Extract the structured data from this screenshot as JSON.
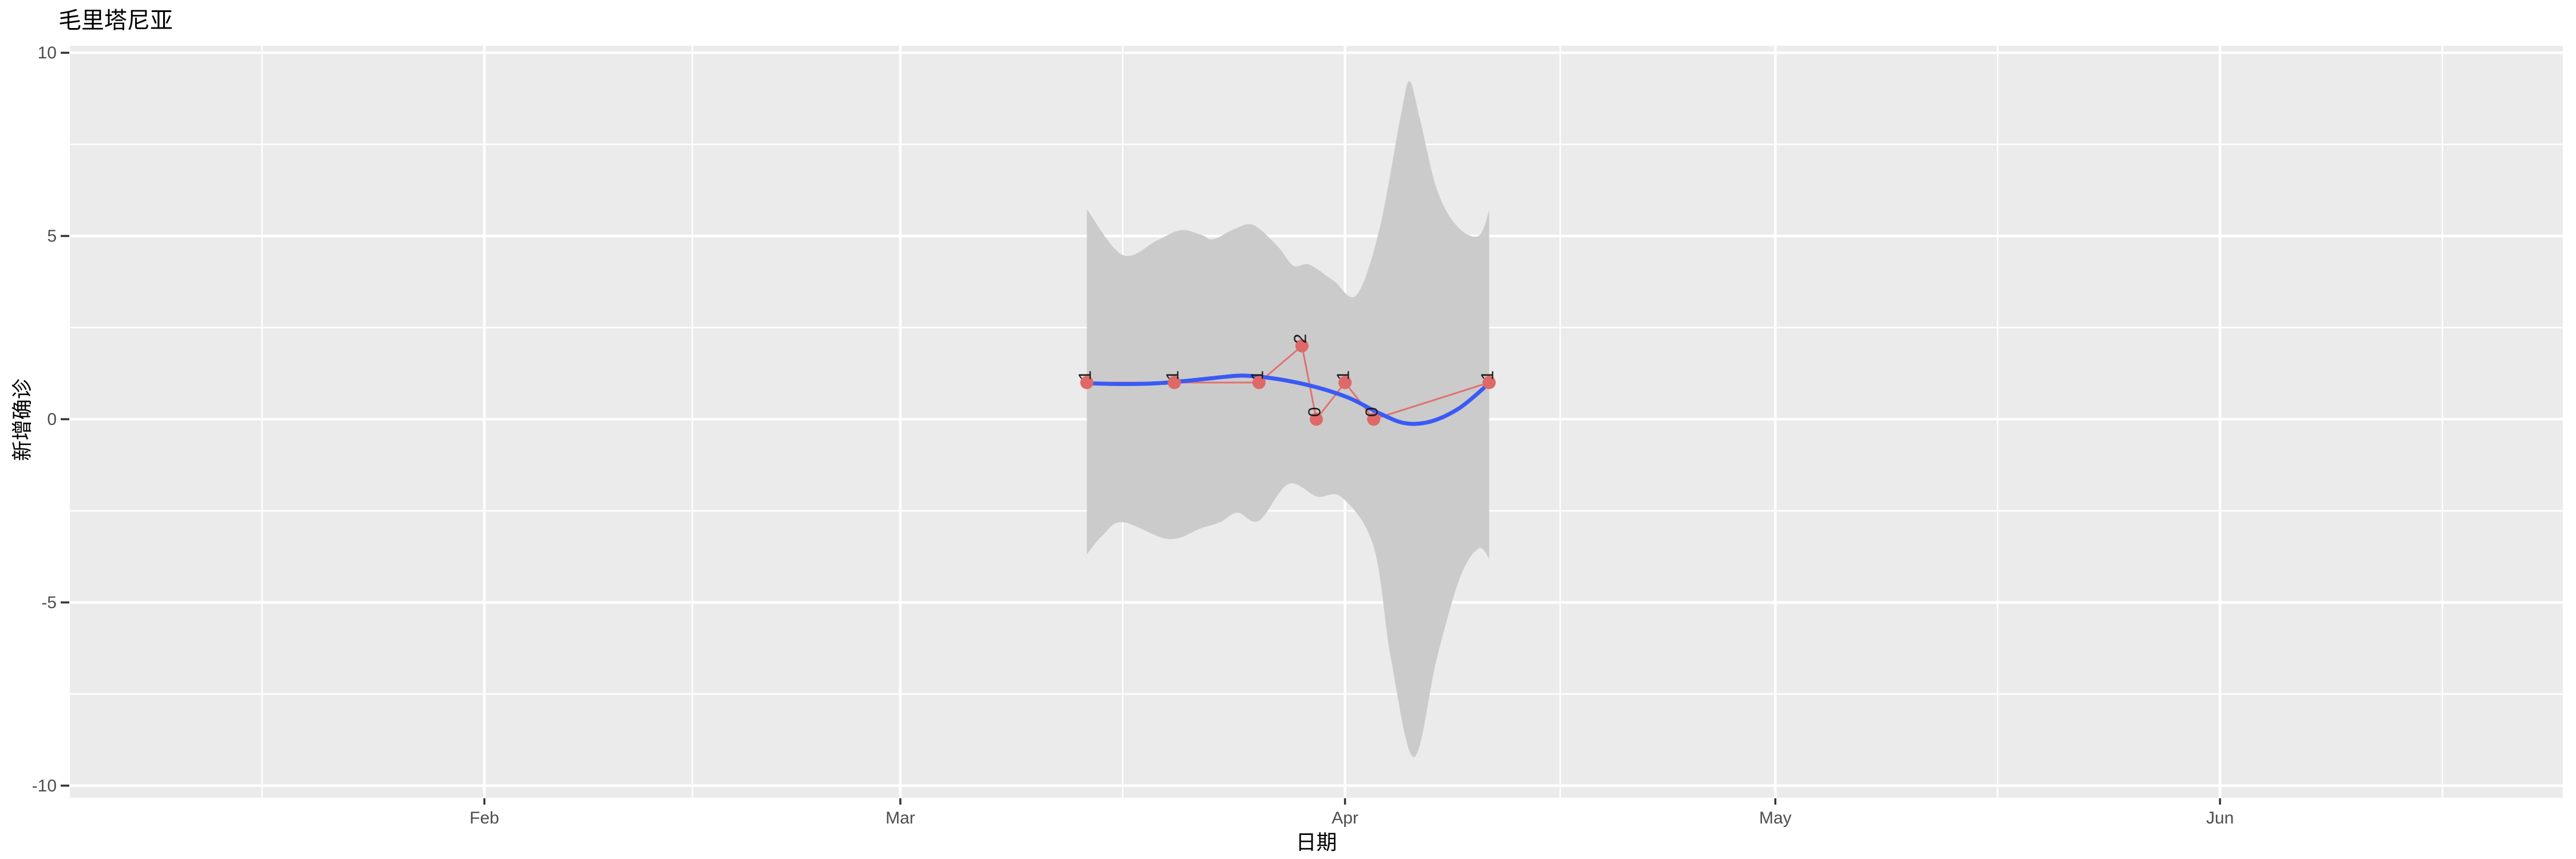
{
  "chart_data": {
    "type": "line",
    "title": "毛里塔尼亚",
    "xlabel": "日期",
    "ylabel": "新增确诊",
    "grid": true,
    "legend": "none",
    "x_axis": {
      "unit": "days_since_Mar1_2020",
      "tick_labels": [
        "Feb",
        "Mar",
        "Apr",
        "May",
        "Jun"
      ],
      "tick_days": [
        -29,
        0,
        31,
        61,
        92
      ],
      "minor_tick_days": [
        -44.5,
        -14.5,
        15.5,
        46,
        76.5,
        107.5
      ],
      "range_days": [
        -57.9,
        115.9
      ]
    },
    "y_axis": {
      "tick_labels": [
        "-10",
        "-5",
        "0",
        "5",
        "10"
      ],
      "tick_values": [
        -10,
        -5,
        0,
        5,
        10
      ],
      "minor_tick_values": [
        -7.5,
        -2.5,
        2.5,
        7.5
      ],
      "range": [
        -10.33,
        10.19
      ]
    },
    "points": [
      {
        "date": "Mar 14",
        "day": 13.0,
        "value": 1,
        "label": "1"
      },
      {
        "date": "Mar 20",
        "day": 19.1,
        "value": 1,
        "label": "1"
      },
      {
        "date": "Mar 26",
        "day": 25.0,
        "value": 1,
        "label": "1"
      },
      {
        "date": "Mar 29",
        "day": 28.0,
        "value": 2,
        "label": "2"
      },
      {
        "date": "Mar 30",
        "day": 29.0,
        "value": 0,
        "label": "0"
      },
      {
        "date": "Apr 1",
        "day": 31.0,
        "value": 1,
        "label": "1"
      },
      {
        "date": "Apr 3",
        "day": 33.0,
        "value": 0,
        "label": "0"
      },
      {
        "date": "Apr 11",
        "day": 41.05,
        "value": 1,
        "label": "1"
      }
    ],
    "smooth_line": {
      "name": "loess-fit",
      "points": [
        [
          13.0,
          0.98
        ],
        [
          15.5,
          0.96
        ],
        [
          17.9,
          0.98
        ],
        [
          20.3,
          1.06
        ],
        [
          22.7,
          1.16
        ],
        [
          23.9,
          1.19
        ],
        [
          25.5,
          1.14
        ],
        [
          27.4,
          1.02
        ],
        [
          29.4,
          0.83
        ],
        [
          31.4,
          0.56
        ],
        [
          33.4,
          0.16
        ],
        [
          35.2,
          -0.11
        ],
        [
          37.0,
          -0.06
        ],
        [
          39.0,
          0.31
        ],
        [
          41.05,
          0.98
        ]
      ]
    },
    "confidence_band": {
      "upper": [
        [
          13.0,
          5.73
        ],
        [
          15.5,
          4.48
        ],
        [
          17.9,
          4.88
        ],
        [
          19.55,
          5.16
        ],
        [
          21.0,
          5.03
        ],
        [
          21.8,
          4.91
        ],
        [
          23.3,
          5.19
        ],
        [
          24.6,
          5.3
        ],
        [
          26.3,
          4.72
        ],
        [
          27.4,
          4.19
        ],
        [
          28.5,
          4.22
        ],
        [
          30.2,
          3.78
        ],
        [
          31.8,
          3.39
        ],
        [
          33.4,
          5.19
        ],
        [
          34.9,
          8.31
        ],
        [
          35.5,
          9.22
        ],
        [
          36.2,
          8.23
        ],
        [
          37.4,
          6.28
        ],
        [
          38.8,
          5.27
        ],
        [
          40.3,
          5.0
        ],
        [
          41.05,
          5.69
        ]
      ],
      "lower": [
        [
          13.0,
          -3.69
        ],
        [
          14.1,
          -3.17
        ],
        [
          15.5,
          -2.81
        ],
        [
          18.7,
          -3.27
        ],
        [
          21.0,
          -2.97
        ],
        [
          22.3,
          -2.81
        ],
        [
          23.5,
          -2.55
        ],
        [
          25.0,
          -2.77
        ],
        [
          27.05,
          -1.77
        ],
        [
          29.05,
          -2.11
        ],
        [
          30.8,
          -2.14
        ],
        [
          33.0,
          -3.48
        ],
        [
          34.2,
          -6.53
        ],
        [
          35.8,
          -9.22
        ],
        [
          37.4,
          -6.53
        ],
        [
          39.0,
          -4.34
        ],
        [
          40.3,
          -3.53
        ],
        [
          41.05,
          -3.8
        ]
      ]
    },
    "colors": {
      "panel_background": "#EBEBEB",
      "band": "#CBCBCB",
      "gridline": "#FFFFFF",
      "smooth_line": "#3A5AF5",
      "data_line": "#E0716F",
      "data_point": "#DF6868",
      "point_label": "#1A1A1A",
      "tick_text": "#4D4D4D",
      "axis_tick": "#333333",
      "title_text": "#000000"
    }
  }
}
